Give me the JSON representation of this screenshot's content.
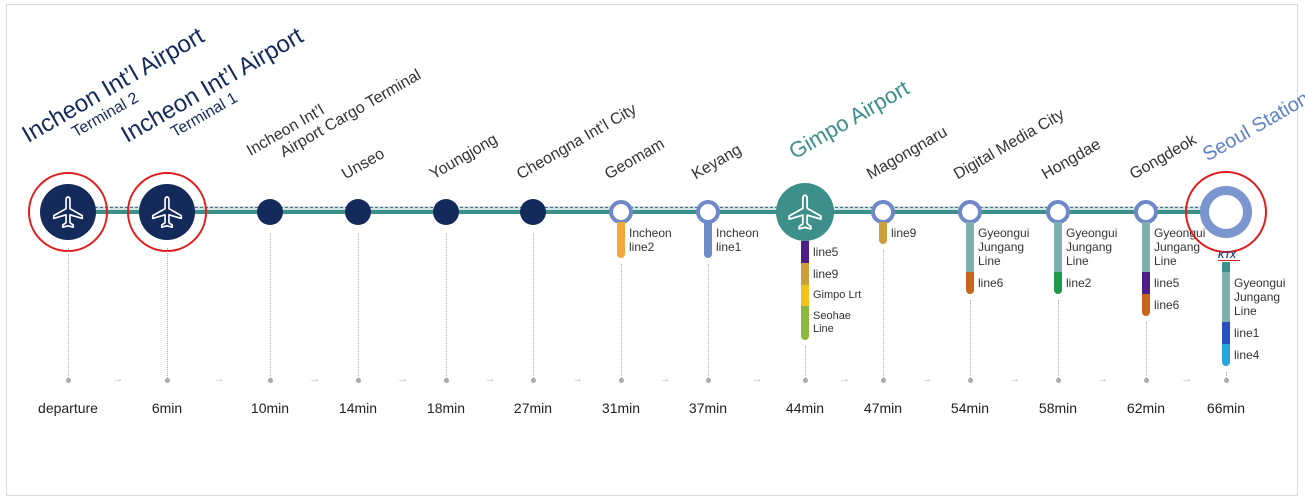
{
  "colors": {
    "dark_node": "#142a5a",
    "ring_node": "#6e89c6",
    "airport_node": "#3d8f8a",
    "seoul_ring": "#7b96cf",
    "track": "#3d8f8a",
    "highlight": "#e21d1d"
  },
  "stations": [
    {
      "id": "s0",
      "name": "Incheon Int’l Airport",
      "sub": "Terminal 2",
      "time": "departure",
      "style": "terminal",
      "icon": "airplane-icon",
      "highlighted": true
    },
    {
      "id": "s1",
      "name": "Incheon Int’l Airport",
      "sub": "Terminal 1",
      "time": "6min",
      "style": "terminal",
      "icon": "airplane-icon",
      "highlighted": true
    },
    {
      "id": "s2",
      "name": "Incheon Int’l",
      "sub": "Airport Cargo Terminal",
      "time": "10min",
      "style": "dark"
    },
    {
      "id": "s3",
      "name": "Unseo",
      "time": "14min",
      "style": "dark"
    },
    {
      "id": "s4",
      "name": "Youngjong",
      "time": "18min",
      "style": "dark"
    },
    {
      "id": "s5",
      "name": "Cheongna Int’l City",
      "time": "27min",
      "style": "dark"
    },
    {
      "id": "s6",
      "name": "Geomam",
      "time": "31min",
      "style": "ring",
      "transfers": [
        "Incheon line2"
      ]
    },
    {
      "id": "s7",
      "name": "Keyang",
      "time": "37min",
      "style": "ring",
      "transfers": [
        "Incheon line1"
      ]
    },
    {
      "id": "s8",
      "name": "Gimpo Airport",
      "time": "44min",
      "style": "airport",
      "icon": "airplane-icon",
      "transfers": [
        "line5",
        "line9",
        "Gimpo Lrt",
        "Seohae Line"
      ]
    },
    {
      "id": "s9",
      "name": "Magongnaru",
      "time": "47min",
      "style": "ring",
      "transfers": [
        "line9"
      ]
    },
    {
      "id": "s10",
      "name": "Digital Media City",
      "time": "54min",
      "style": "ring",
      "transfers": [
        "Gyeongui Jungang Line",
        "line6"
      ]
    },
    {
      "id": "s11",
      "name": "Hongdae",
      "time": "58min",
      "style": "ring",
      "transfers": [
        "Gyeongui Jungang Line",
        "line2"
      ]
    },
    {
      "id": "s12",
      "name": "Gongdeok",
      "time": "62min",
      "style": "ring",
      "transfers": [
        "Gyeongui Jungang Line",
        "line5",
        "line6"
      ]
    },
    {
      "id": "s13",
      "name": "Seoul Station",
      "time": "66min",
      "style": "seoul",
      "highlighted": true,
      "transfers": [
        "KTX",
        "Gyeongui Jungang Line",
        "line1",
        "line4"
      ]
    }
  ],
  "line_colors": {
    "Incheon line2": "#f2a93b",
    "Incheon line1": "#6d8cc8",
    "line5": "#4b1f86",
    "line9": "#cba03b",
    "Gimpo Lrt": "#f0c419",
    "Seohae Line": "#8cb83c",
    "Gyeongui Jungang Line": "#7fb0b0",
    "line6": "#c8651b",
    "line2": "#1f9a4a",
    "line1": "#2a4fc4",
    "line4": "#29a8e0",
    "KTX": "#1c3d8f"
  },
  "labels": {
    "Incheon line2": [
      "Incheon",
      "line2"
    ],
    "Incheon line1": [
      "Incheon",
      "line1"
    ],
    "Gimpo Lrt": [
      "Gimpo Lrt"
    ],
    "Seohae Line": [
      "Seohae",
      "Line"
    ],
    "Gyeongui Jungang Line": [
      "Gyeongui",
      "Jungang",
      "Line"
    ],
    "line5": [
      "line5"
    ],
    "line6": [
      "line6"
    ],
    "line9": [
      "line9"
    ],
    "line1": [
      "line1"
    ],
    "line2": [
      "line2"
    ],
    "line4": [
      "line4"
    ],
    "KTX": [
      "KTX"
    ]
  }
}
